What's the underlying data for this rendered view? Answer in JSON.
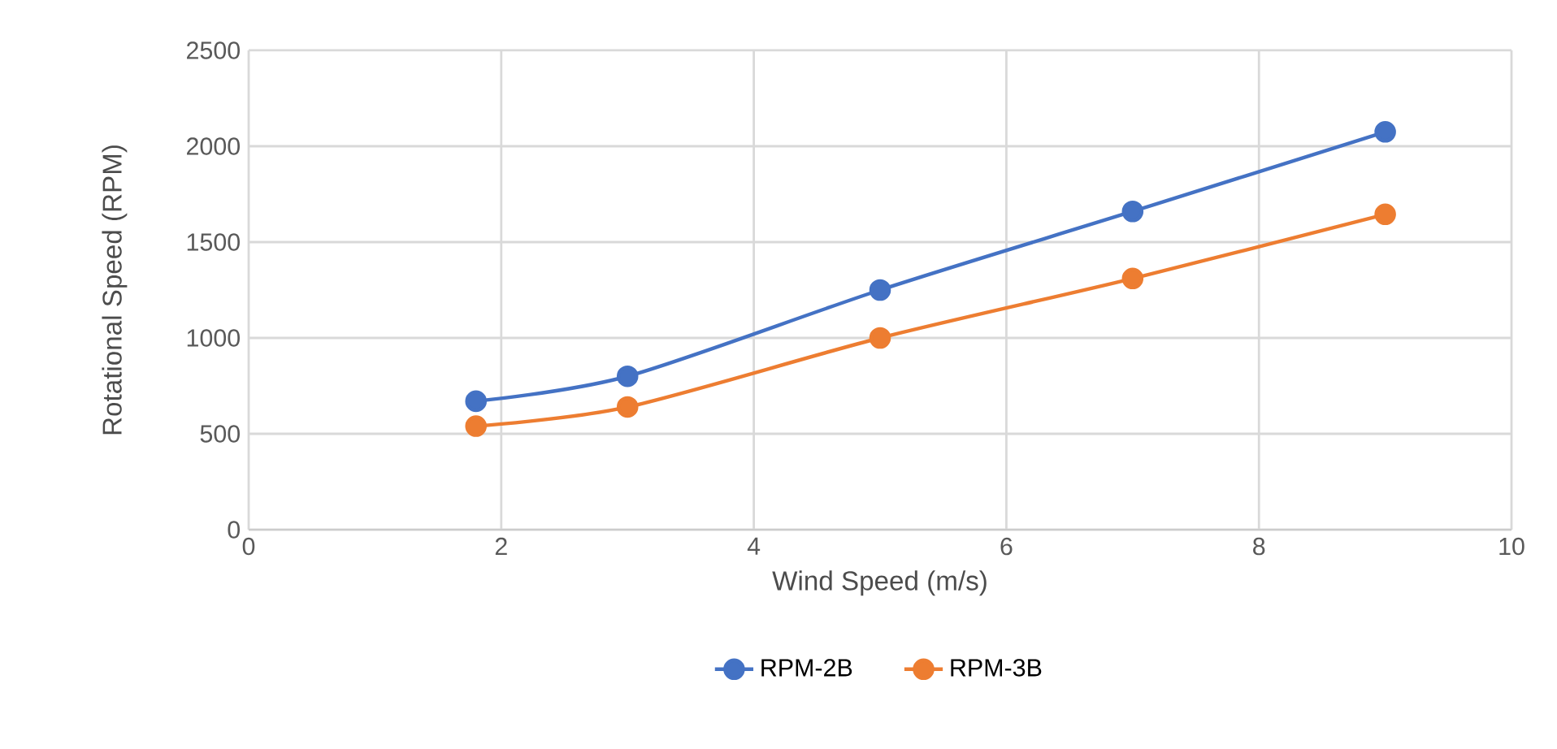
{
  "chart_data": {
    "type": "line",
    "xlabel": "Wind Speed (m/s)",
    "ylabel": "Rotational Speed (RPM)",
    "xlim": [
      0,
      10
    ],
    "xticks": [
      0,
      2,
      4,
      6,
      8,
      10
    ],
    "ylim": [
      0,
      2500
    ],
    "yticks": [
      0,
      500,
      1000,
      1500,
      2000,
      2500
    ],
    "x": [
      1.8,
      3,
      5,
      7,
      9
    ],
    "series": [
      {
        "name": "RPM-2B",
        "color": "#4472c4",
        "values": [
          670,
          800,
          1250,
          1660,
          2075
        ]
      },
      {
        "name": "RPM-3B",
        "color": "#ed7d31",
        "values": [
          540,
          640,
          1000,
          1310,
          1645
        ]
      }
    ],
    "grid": true,
    "legend": "bottom",
    "marker": "circle",
    "line_style": "solid"
  }
}
